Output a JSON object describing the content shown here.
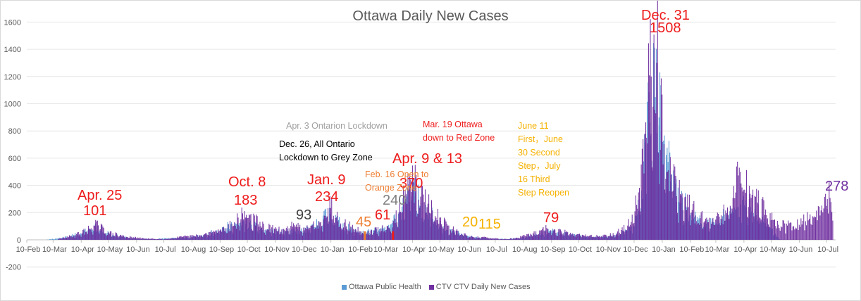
{
  "chart_data": {
    "type": "bar",
    "title": "Ottawa Daily New Cases",
    "xlabel": "",
    "ylabel": "",
    "ylim": [
      -200,
      1600
    ],
    "yticks": [
      -200,
      0,
      200,
      400,
      600,
      800,
      1000,
      1200,
      1400,
      1600
    ],
    "x_range": [
      "2020-02-10",
      "2022-07-20"
    ],
    "x_tick_labels": [
      "10-Feb",
      "10-Mar",
      "10-Apr",
      "10-May",
      "10-Jun",
      "10-Jul",
      "10-Aug",
      "10-Sep",
      "10-Oct",
      "10-Nov",
      "10-Dec",
      "10-Jan",
      "10-Feb",
      "10-Mar",
      "10-Apr",
      "10-May",
      "10-Jun",
      "10-Jul",
      "10-Aug",
      "10-Sep",
      "10-Oct",
      "10-Nov",
      "10-Dec",
      "10-Jan",
      "10-Feb",
      "10-Mar",
      "10-Apr",
      "10-May",
      "10-Jun",
      "10-Jul"
    ],
    "x_tick_dates": [
      "2020-02-10",
      "2020-03-10",
      "2020-04-10",
      "2020-05-10",
      "2020-06-10",
      "2020-07-10",
      "2020-08-10",
      "2020-09-10",
      "2020-10-10",
      "2020-11-10",
      "2020-12-10",
      "2021-01-10",
      "2021-02-10",
      "2021-03-10",
      "2021-04-10",
      "2021-05-10",
      "2021-06-10",
      "2021-07-10",
      "2021-08-10",
      "2021-09-10",
      "2021-10-10",
      "2021-11-10",
      "2021-12-10",
      "2022-01-10",
      "2022-02-10",
      "2022-03-10",
      "2022-04-10",
      "2022-05-10",
      "2022-06-10",
      "2022-07-10"
    ],
    "grid": true,
    "legend_position": "bottom",
    "series": [
      {
        "name": "Ottawa Public Health",
        "color": "#5b9bd5",
        "points": [
          [
            "2020-03-01",
            0
          ],
          [
            "2020-03-20",
            15
          ],
          [
            "2020-04-10",
            45
          ],
          [
            "2020-04-25",
            95
          ],
          [
            "2020-05-15",
            35
          ],
          [
            "2020-06-05",
            10
          ],
          [
            "2020-06-30",
            5
          ],
          [
            "2020-07-20",
            15
          ],
          [
            "2020-08-05",
            15
          ],
          [
            "2020-08-25",
            35
          ],
          [
            "2020-09-10",
            75
          ],
          [
            "2020-09-25",
            105
          ],
          [
            "2020-10-08",
            115
          ],
          [
            "2020-10-25",
            75
          ],
          [
            "2020-11-15",
            55
          ],
          [
            "2020-12-05",
            60
          ],
          [
            "2020-12-20",
            80
          ],
          [
            "2021-01-02",
            160
          ],
          [
            "2021-01-09",
            190
          ],
          [
            "2021-01-20",
            110
          ],
          [
            "2021-02-05",
            60
          ],
          [
            "2021-02-16",
            55
          ],
          [
            "2021-03-01",
            65
          ],
          [
            "2021-03-15",
            90
          ],
          [
            "2021-03-25",
            190
          ],
          [
            "2021-04-05",
            290
          ],
          [
            "2021-04-12",
            320
          ],
          [
            "2021-04-25",
            200
          ],
          [
            "2021-05-10",
            110
          ],
          [
            "2021-05-25",
            55
          ],
          [
            "2021-06-10",
            25
          ],
          [
            "2021-06-30",
            10
          ],
          [
            "2021-07-20",
            5
          ],
          [
            "2021-08-10",
            15
          ],
          [
            "2021-08-25",
            35
          ],
          [
            "2021-09-08",
            60
          ],
          [
            "2021-09-25",
            40
          ],
          [
            "2021-10-15",
            25
          ],
          [
            "2021-11-05",
            20
          ],
          [
            "2021-11-25",
            40
          ],
          [
            "2021-12-10",
            100
          ],
          [
            "2021-12-18",
            350
          ],
          [
            "2021-12-24",
            820
          ],
          [
            "2021-12-31",
            1150
          ],
          [
            "2022-01-06",
            900
          ],
          [
            "2022-01-14",
            600
          ],
          [
            "2022-01-25",
            340
          ],
          [
            "2022-02-10",
            180
          ],
          [
            "2022-02-25",
            110
          ],
          [
            "2022-03-10",
            120
          ],
          [
            "2022-03-25",
            210
          ],
          [
            "2022-04-10",
            240
          ],
          [
            "2022-04-25",
            150
          ],
          [
            "2022-05-10",
            80
          ],
          [
            "2022-05-20",
            0
          ]
        ]
      },
      {
        "name": "CTV CTV Daily New Cases",
        "color": "#7030a0",
        "points": [
          [
            "2020-03-15",
            5
          ],
          [
            "2020-04-01",
            30
          ],
          [
            "2020-04-15",
            60
          ],
          [
            "2020-04-25",
            101
          ],
          [
            "2020-05-10",
            45
          ],
          [
            "2020-05-30",
            20
          ],
          [
            "2020-06-20",
            8
          ],
          [
            "2020-07-10",
            5
          ],
          [
            "2020-07-30",
            20
          ],
          [
            "2020-08-20",
            30
          ],
          [
            "2020-09-10",
            70
          ],
          [
            "2020-09-25",
            110
          ],
          [
            "2020-10-08",
            183
          ],
          [
            "2020-10-25",
            90
          ],
          [
            "2020-11-15",
            60
          ],
          [
            "2020-11-30",
            93
          ],
          [
            "2020-12-15",
            70
          ],
          [
            "2021-01-01",
            150
          ],
          [
            "2021-01-09",
            234
          ],
          [
            "2021-01-20",
            120
          ],
          [
            "2021-02-05",
            70
          ],
          [
            "2021-02-16",
            45
          ],
          [
            "2021-02-28",
            61
          ],
          [
            "2021-03-15",
            80
          ],
          [
            "2021-03-25",
            200
          ],
          [
            "2021-04-02",
            300
          ],
          [
            "2021-04-09",
            370
          ],
          [
            "2021-04-13",
            360
          ],
          [
            "2021-04-25",
            240
          ],
          [
            "2021-05-10",
            140
          ],
          [
            "2021-05-25",
            60
          ],
          [
            "2021-06-11",
            20
          ],
          [
            "2021-06-30",
            15
          ],
          [
            "2021-07-16",
            5
          ],
          [
            "2021-08-01",
            10
          ],
          [
            "2021-08-20",
            40
          ],
          [
            "2021-09-05",
            79
          ],
          [
            "2021-09-20",
            55
          ],
          [
            "2021-10-10",
            30
          ],
          [
            "2021-11-01",
            25
          ],
          [
            "2021-11-20",
            45
          ],
          [
            "2021-12-05",
            110
          ],
          [
            "2021-12-15",
            350
          ],
          [
            "2021-12-22",
            700
          ],
          [
            "2021-12-28",
            1200
          ],
          [
            "2021-12-31",
            1508
          ],
          [
            "2022-01-03",
            1300
          ],
          [
            "2022-01-08",
            800
          ],
          [
            "2022-01-15",
            500
          ],
          [
            "2022-01-25",
            320
          ],
          [
            "2022-02-10",
            200
          ],
          [
            "2022-02-25",
            130
          ],
          [
            "2022-03-15",
            150
          ],
          [
            "2022-03-25",
            250
          ],
          [
            "2022-04-05",
            500
          ],
          [
            "2022-04-15",
            300
          ],
          [
            "2022-04-25",
            260
          ],
          [
            "2022-05-05",
            150
          ],
          [
            "2022-05-20",
            100
          ],
          [
            "2022-06-05",
            90
          ],
          [
            "2022-06-25",
            160
          ],
          [
            "2022-07-10",
            300
          ],
          [
            "2022-07-14",
            278
          ],
          [
            "2022-07-17",
            0
          ]
        ]
      }
    ],
    "annotations": [
      {
        "text": "Apr. 25",
        "color": "#ee1c1c",
        "size": "big"
      },
      {
        "text": "101",
        "color": "#ee1c1c",
        "size": "big"
      },
      {
        "text": "Oct. 8",
        "color": "#ee1c1c",
        "size": "big"
      },
      {
        "text": "183",
        "color": "#ee1c1c",
        "size": "big"
      },
      {
        "text": "93",
        "color": "#404040",
        "size": "big"
      },
      {
        "text": "Jan. 9",
        "color": "#ee1c1c",
        "size": "big"
      },
      {
        "text": "234",
        "color": "#ee1c1c",
        "size": "big"
      },
      {
        "text": "45",
        "color": "#ed7d31",
        "size": "big"
      },
      {
        "text": "61",
        "color": "#ee1c1c",
        "size": "big"
      },
      {
        "text": "240",
        "color": "#7f7f7f",
        "size": "big"
      },
      {
        "text": "Apr. 9 & 13",
        "color": "#ee1c1c",
        "size": "big"
      },
      {
        "text": "370",
        "color": "#ee1c1c",
        "size": "big"
      },
      {
        "text": "20",
        "color": "#f5b100",
        "size": "big"
      },
      {
        "text": "115",
        "color": "#f5b100",
        "size": "big"
      },
      {
        "text": "79",
        "color": "#ee1c1c",
        "size": "big"
      },
      {
        "text": "Dec. 31",
        "color": "#ee1c1c",
        "size": "big"
      },
      {
        "text": "1508",
        "color": "#ee1c1c",
        "size": "big"
      },
      {
        "text": "278",
        "color": "#7030a0",
        "size": "big"
      },
      {
        "text": "Apr. 3 Ontarion Lockdown",
        "color": "#a0a0a0",
        "size": "small"
      },
      {
        "text": "Dec. 26, All Ontario",
        "color": "#000000",
        "size": "small"
      },
      {
        "text": "Lockdown to Grey Zone",
        "color": "#000000",
        "size": "small"
      },
      {
        "text": "Feb. 16 Open to",
        "color": "#ed7d31",
        "size": "small"
      },
      {
        "text": "Orange Zone",
        "color": "#ed7d31",
        "size": "small"
      },
      {
        "text": "Mar. 19 Ottawa",
        "color": "#ee1c1c",
        "size": "small"
      },
      {
        "text": "down to Red Zone",
        "color": "#ee1c1c",
        "size": "small"
      },
      {
        "text": "June 11",
        "color": "#f5b100",
        "size": "small"
      },
      {
        "text": "First，June",
        "color": "#f5b100",
        "size": "small"
      },
      {
        "text": "30 Second",
        "color": "#f5b100",
        "size": "small"
      },
      {
        "text": "Step，July",
        "color": "#f5b100",
        "size": "small"
      },
      {
        "text": "16 Third",
        "color": "#f5b100",
        "size": "small"
      },
      {
        "text": "Step Reopen",
        "color": "#f5b100",
        "size": "small"
      }
    ]
  }
}
